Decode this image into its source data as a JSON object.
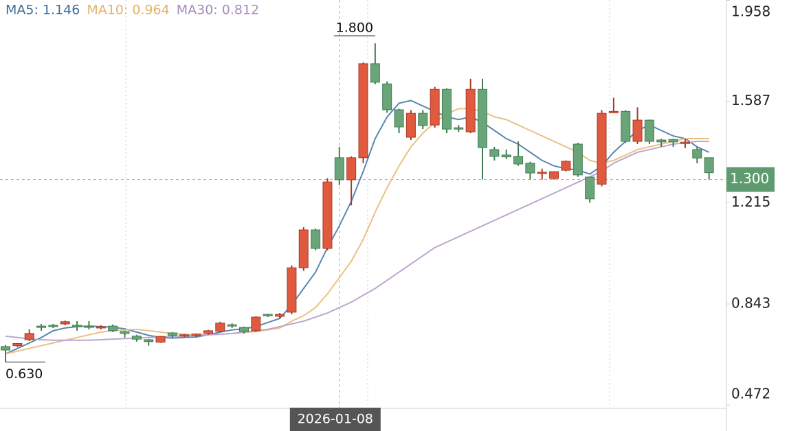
{
  "chart_data": {
    "type": "candlestick",
    "ylim": [
      0.46,
      1.959
    ],
    "yticks": [
      1.958,
      1.587,
      1.215,
      0.843,
      0.472
    ],
    "up_color": "#e05a3f",
    "down_color": "#6aa57a",
    "categories": [
      null,
      null,
      null,
      null,
      null,
      null,
      null,
      null,
      null,
      null,
      null,
      null,
      null,
      null,
      null,
      null,
      null,
      null,
      null,
      null,
      null,
      null,
      null,
      null,
      null,
      null,
      null,
      null,
      "2026-01-08",
      null,
      null,
      null,
      null,
      null,
      null,
      null,
      null,
      null,
      null,
      null,
      null,
      null,
      null,
      null,
      null,
      null,
      null,
      null,
      null,
      null,
      null,
      null,
      null,
      null,
      null,
      null,
      null,
      null,
      null,
      null
    ],
    "ohlc": [
      [
        0.687,
        0.692,
        0.63,
        0.674
      ],
      [
        0.69,
        0.7,
        0.685,
        0.698
      ],
      [
        0.712,
        0.75,
        0.707,
        0.735
      ],
      [
        0.762,
        0.77,
        0.745,
        0.757
      ],
      [
        0.765,
        0.77,
        0.755,
        0.762
      ],
      [
        0.77,
        0.782,
        0.765,
        0.778
      ],
      [
        0.765,
        0.78,
        0.745,
        0.76
      ],
      [
        0.762,
        0.78,
        0.75,
        0.758
      ],
      [
        0.755,
        0.765,
        0.75,
        0.76
      ],
      [
        0.762,
        0.768,
        0.74,
        0.745
      ],
      [
        0.742,
        0.745,
        0.72,
        0.735
      ],
      [
        0.725,
        0.73,
        0.705,
        0.714
      ],
      [
        0.712,
        0.715,
        0.69,
        0.705
      ],
      [
        0.703,
        0.725,
        0.7,
        0.724
      ],
      [
        0.737,
        0.74,
        0.72,
        0.728
      ],
      [
        0.727,
        0.733,
        0.722,
        0.73
      ],
      [
        0.728,
        0.735,
        0.72,
        0.733
      ],
      [
        0.735,
        0.748,
        0.73,
        0.745
      ],
      [
        0.743,
        0.778,
        0.74,
        0.773
      ],
      [
        0.767,
        0.772,
        0.755,
        0.762
      ],
      [
        0.757,
        0.76,
        0.735,
        0.742
      ],
      [
        0.745,
        0.798,
        0.74,
        0.795
      ],
      [
        0.805,
        0.807,
        0.795,
        0.8
      ],
      [
        0.798,
        0.81,
        0.79,
        0.805
      ],
      [
        0.813,
        0.985,
        0.805,
        0.976
      ],
      [
        0.976,
        1.125,
        0.965,
        1.115
      ],
      [
        1.115,
        1.12,
        1.04,
        1.047
      ],
      [
        1.047,
        1.305,
        1.04,
        1.291
      ],
      [
        1.38,
        1.42,
        1.28,
        1.299
      ],
      [
        1.299,
        1.385,
        1.205,
        1.38
      ],
      [
        1.38,
        1.73,
        1.36,
        1.725
      ],
      [
        1.725,
        1.8,
        1.65,
        1.657
      ],
      [
        1.651,
        1.66,
        1.545,
        1.556
      ],
      [
        1.556,
        1.56,
        1.47,
        1.493
      ],
      [
        1.455,
        1.555,
        1.445,
        1.543
      ],
      [
        1.543,
        1.555,
        1.485,
        1.498
      ],
      [
        1.5,
        1.64,
        1.49,
        1.631
      ],
      [
        1.631,
        1.635,
        1.47,
        1.485
      ],
      [
        1.49,
        1.5,
        1.475,
        1.485
      ],
      [
        1.475,
        1.67,
        1.47,
        1.631
      ],
      [
        1.631,
        1.67,
        1.3,
        1.417
      ],
      [
        1.41,
        1.42,
        1.37,
        1.385
      ],
      [
        1.39,
        1.41,
        1.375,
        1.383
      ],
      [
        1.385,
        1.44,
        1.35,
        1.357
      ],
      [
        1.36,
        1.365,
        1.3,
        1.324
      ],
      [
        1.322,
        1.34,
        1.3,
        1.327
      ],
      [
        1.304,
        1.33,
        1.3,
        1.329
      ],
      [
        1.334,
        1.37,
        1.33,
        1.367
      ],
      [
        1.43,
        1.435,
        1.31,
        1.317
      ],
      [
        1.309,
        1.31,
        1.215,
        1.229
      ],
      [
        1.283,
        1.555,
        1.275,
        1.543
      ],
      [
        1.545,
        1.6,
        1.545,
        1.55
      ],
      [
        1.55,
        1.555,
        1.435,
        1.44
      ],
      [
        1.44,
        1.565,
        1.43,
        1.518
      ],
      [
        1.518,
        1.52,
        1.43,
        1.44
      ],
      [
        1.445,
        1.45,
        1.42,
        1.438
      ],
      [
        1.447,
        1.45,
        1.42,
        1.438
      ],
      [
        1.432,
        1.45,
        1.415,
        1.437
      ],
      [
        1.41,
        1.42,
        1.36,
        1.379
      ],
      [
        1.38,
        1.38,
        1.3,
        1.325
      ]
    ],
    "lines": [
      {
        "label": "MA5: 1.146",
        "legend_value": 1.146,
        "color": "#5b86b0",
        "text_color": "#3d6e9a",
        "values": [
          0.66,
          0.68,
          0.7,
          0.72,
          0.745,
          0.755,
          0.76,
          0.762,
          0.76,
          0.758,
          0.752,
          0.74,
          0.728,
          0.72,
          0.718,
          0.72,
          0.722,
          0.73,
          0.74,
          0.748,
          0.752,
          0.76,
          0.775,
          0.79,
          0.84,
          0.9,
          0.96,
          1.05,
          1.13,
          1.22,
          1.33,
          1.45,
          1.53,
          1.58,
          1.59,
          1.57,
          1.55,
          1.53,
          1.52,
          1.53,
          1.51,
          1.48,
          1.45,
          1.43,
          1.4,
          1.37,
          1.35,
          1.34,
          1.335,
          1.32,
          1.35,
          1.4,
          1.44,
          1.48,
          1.5,
          1.48,
          1.46,
          1.45,
          1.42,
          1.4
        ]
      },
      {
        "label": "MA10: 0.964",
        "legend_value": 0.964,
        "color": "#ebc083",
        "text_color": "#e5b26a",
        "values": [
          0.66,
          0.67,
          0.68,
          0.69,
          0.7,
          0.71,
          0.72,
          0.73,
          0.74,
          0.745,
          0.748,
          0.75,
          0.745,
          0.74,
          0.735,
          0.732,
          0.73,
          0.73,
          0.732,
          0.735,
          0.738,
          0.742,
          0.748,
          0.755,
          0.78,
          0.8,
          0.83,
          0.88,
          0.94,
          1.0,
          1.08,
          1.18,
          1.27,
          1.35,
          1.42,
          1.47,
          1.51,
          1.54,
          1.56,
          1.56,
          1.55,
          1.53,
          1.52,
          1.5,
          1.48,
          1.46,
          1.44,
          1.42,
          1.4,
          1.37,
          1.36,
          1.37,
          1.39,
          1.41,
          1.42,
          1.43,
          1.44,
          1.45,
          1.45,
          1.45
        ]
      },
      {
        "label": "MA30: 0.812",
        "legend_value": 0.812,
        "color": "#bda6cf",
        "text_color": "#a78bbf",
        "values": [
          0.725,
          0.72,
          0.715,
          0.712,
          0.71,
          0.71,
          0.71,
          0.71,
          0.712,
          0.714,
          0.716,
          0.718,
          0.72,
          0.722,
          0.724,
          0.726,
          0.728,
          0.73,
          0.732,
          0.735,
          0.74,
          0.745,
          0.75,
          0.76,
          0.77,
          0.78,
          0.795,
          0.81,
          0.83,
          0.85,
          0.875,
          0.9,
          0.93,
          0.96,
          0.99,
          1.02,
          1.05,
          1.07,
          1.09,
          1.11,
          1.13,
          1.15,
          1.17,
          1.19,
          1.21,
          1.23,
          1.25,
          1.27,
          1.29,
          1.31,
          1.33,
          1.36,
          1.38,
          1.4,
          1.41,
          1.42,
          1.43,
          1.435,
          1.44,
          1.44
        ]
      }
    ],
    "annotations": [
      {
        "text": "1.800",
        "value": 1.8
      },
      {
        "text": "0.630",
        "value": 0.63
      }
    ],
    "crosshair_price": {
      "value": 1.3,
      "label": "1.300"
    }
  }
}
